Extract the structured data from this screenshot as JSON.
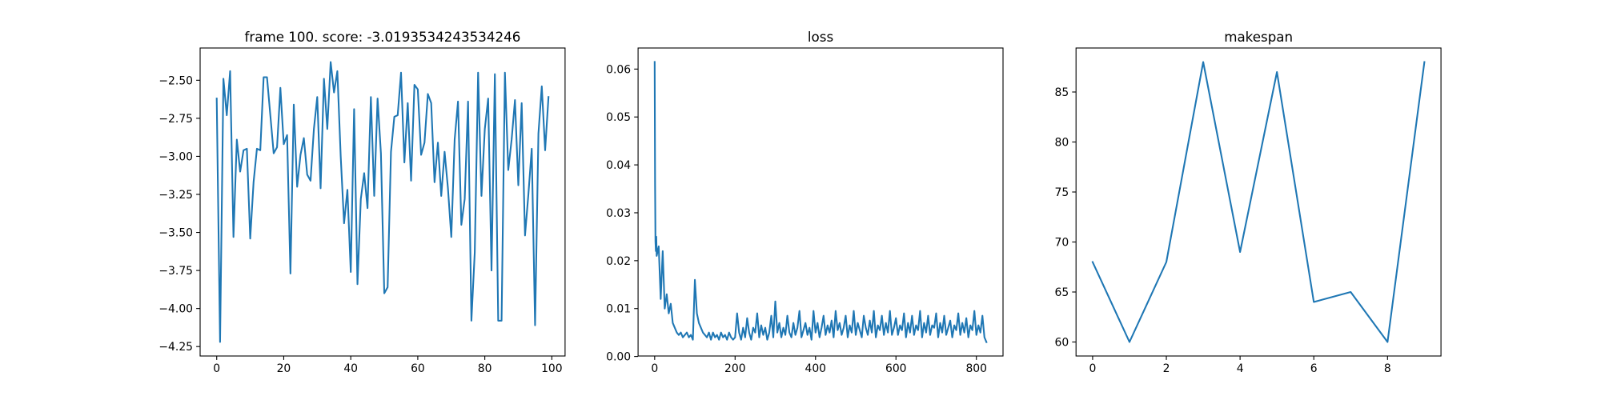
{
  "chart_data": [
    {
      "type": "line",
      "title": "frame 100. score: -3.0193534243534246",
      "color": "#1f77b4",
      "x": [
        0,
        1,
        2,
        3,
        4,
        5,
        6,
        7,
        8,
        9,
        10,
        11,
        12,
        13,
        14,
        15,
        16,
        17,
        18,
        19,
        20,
        21,
        22,
        23,
        24,
        25,
        26,
        27,
        28,
        29,
        30,
        31,
        32,
        33,
        34,
        35,
        36,
        37,
        38,
        39,
        40,
        41,
        42,
        43,
        44,
        45,
        46,
        47,
        48,
        49,
        50,
        51,
        52,
        53,
        54,
        55,
        56,
        57,
        58,
        59,
        60,
        61,
        62,
        63,
        64,
        65,
        66,
        67,
        68,
        69,
        70,
        71,
        72,
        73,
        74,
        75,
        76,
        77,
        78,
        79,
        80,
        81,
        82,
        83,
        84,
        85,
        86,
        87,
        88,
        89,
        90,
        91,
        92,
        93,
        94,
        95,
        96,
        97,
        98,
        99
      ],
      "values": [
        -2.62,
        -4.22,
        -2.49,
        -2.73,
        -2.44,
        -3.53,
        -2.89,
        -3.1,
        -2.96,
        -2.95,
        -3.54,
        -3.17,
        -2.95,
        -2.96,
        -2.48,
        -2.48,
        -2.73,
        -2.98,
        -2.94,
        -2.55,
        -2.92,
        -2.86,
        -3.77,
        -2.66,
        -3.2,
        -2.99,
        -2.88,
        -3.12,
        -3.16,
        -2.82,
        -2.61,
        -3.21,
        -2.49,
        -2.82,
        -2.38,
        -2.58,
        -2.44,
        -3.0,
        -3.44,
        -3.22,
        -3.76,
        -2.69,
        -3.84,
        -3.28,
        -3.11,
        -3.34,
        -2.61,
        -3.26,
        -2.62,
        -2.98,
        -3.9,
        -3.86,
        -2.97,
        -2.74,
        -2.73,
        -2.45,
        -3.04,
        -2.65,
        -3.16,
        -2.53,
        -2.56,
        -2.99,
        -2.91,
        -2.59,
        -2.65,
        -3.17,
        -2.91,
        -3.26,
        -2.97,
        -3.21,
        -3.53,
        -2.89,
        -2.64,
        -3.45,
        -3.28,
        -2.64,
        -4.08,
        -3.63,
        -2.45,
        -3.26,
        -2.82,
        -2.62,
        -3.75,
        -2.46,
        -4.08,
        -4.08,
        -2.45,
        -3.09,
        -2.89,
        -2.63,
        -3.19,
        -2.65,
        -3.52,
        -3.25,
        -2.95,
        -4.11,
        -2.85,
        -2.54,
        -2.96,
        -2.61
      ],
      "xlim": [
        -4.95,
        103.95
      ],
      "ylim": [
        -4.312,
        -2.288
      ],
      "xticks": [
        0,
        20,
        40,
        60,
        80,
        100
      ],
      "yticks": [
        {
          "value": -4.25,
          "label": "−4.25"
        },
        {
          "value": -4.0,
          "label": "−4.00"
        },
        {
          "value": -3.75,
          "label": "−3.75"
        },
        {
          "value": -3.5,
          "label": "−3.50"
        },
        {
          "value": -3.25,
          "label": "−3.25"
        },
        {
          "value": -3.0,
          "label": "−3.00"
        },
        {
          "value": -2.75,
          "label": "−2.75"
        },
        {
          "value": -2.5,
          "label": "−2.50"
        }
      ]
    },
    {
      "type": "line",
      "title": "loss",
      "color": "#1f77b4",
      "x": [
        0,
        1,
        2,
        3,
        4,
        5,
        10,
        15,
        20,
        25,
        30,
        35,
        40,
        45,
        50,
        55,
        60,
        65,
        70,
        75,
        80,
        85,
        90,
        95,
        100,
        105,
        110,
        115,
        120,
        125,
        130,
        135,
        140,
        145,
        150,
        155,
        160,
        165,
        170,
        175,
        180,
        185,
        190,
        195,
        200,
        205,
        210,
        215,
        220,
        225,
        230,
        235,
        240,
        245,
        250,
        255,
        260,
        265,
        270,
        275,
        280,
        285,
        290,
        295,
        300,
        305,
        310,
        315,
        320,
        325,
        330,
        335,
        340,
        345,
        350,
        355,
        360,
        365,
        370,
        375,
        380,
        385,
        390,
        395,
        400,
        405,
        410,
        415,
        420,
        425,
        430,
        435,
        440,
        445,
        450,
        455,
        460,
        465,
        470,
        475,
        480,
        485,
        490,
        495,
        500,
        505,
        510,
        515,
        520,
        525,
        530,
        535,
        540,
        545,
        550,
        555,
        560,
        565,
        570,
        575,
        580,
        585,
        590,
        595,
        600,
        605,
        610,
        615,
        620,
        625,
        630,
        635,
        640,
        645,
        650,
        655,
        660,
        665,
        670,
        675,
        680,
        685,
        690,
        695,
        700,
        705,
        710,
        715,
        720,
        725,
        730,
        735,
        740,
        745,
        750,
        755,
        760,
        765,
        770,
        775,
        780,
        785,
        790,
        795,
        800,
        805,
        810,
        815,
        820,
        825
      ],
      "values": [
        0.0615,
        0.036,
        0.024,
        0.022,
        0.025,
        0.021,
        0.023,
        0.012,
        0.022,
        0.01,
        0.013,
        0.009,
        0.011,
        0.007,
        0.006,
        0.005,
        0.0045,
        0.005,
        0.004,
        0.0045,
        0.005,
        0.004,
        0.0045,
        0.0035,
        0.016,
        0.009,
        0.007,
        0.006,
        0.005,
        0.0045,
        0.004,
        0.005,
        0.0035,
        0.005,
        0.004,
        0.0045,
        0.0035,
        0.005,
        0.004,
        0.0045,
        0.0035,
        0.005,
        0.004,
        0.0035,
        0.004,
        0.009,
        0.005,
        0.0035,
        0.006,
        0.004,
        0.008,
        0.005,
        0.0035,
        0.006,
        0.005,
        0.009,
        0.004,
        0.0065,
        0.0045,
        0.006,
        0.0035,
        0.005,
        0.0085,
        0.004,
        0.0115,
        0.005,
        0.007,
        0.004,
        0.006,
        0.0045,
        0.0085,
        0.005,
        0.004,
        0.007,
        0.0045,
        0.006,
        0.0095,
        0.004,
        0.0055,
        0.007,
        0.0045,
        0.006,
        0.0035,
        0.0095,
        0.005,
        0.007,
        0.004,
        0.006,
        0.0085,
        0.0045,
        0.0065,
        0.005,
        0.0075,
        0.004,
        0.0095,
        0.0055,
        0.007,
        0.0045,
        0.006,
        0.0085,
        0.004,
        0.0065,
        0.005,
        0.0095,
        0.0045,
        0.007,
        0.0055,
        0.004,
        0.0085,
        0.006,
        0.0045,
        0.0075,
        0.005,
        0.0095,
        0.004,
        0.0065,
        0.0055,
        0.0085,
        0.0045,
        0.007,
        0.005,
        0.0095,
        0.0045,
        0.006,
        0.008,
        0.0045,
        0.0065,
        0.0055,
        0.009,
        0.004,
        0.007,
        0.005,
        0.0085,
        0.0045,
        0.0065,
        0.0055,
        0.0095,
        0.004,
        0.007,
        0.005,
        0.0085,
        0.0045,
        0.0065,
        0.006,
        0.009,
        0.004,
        0.007,
        0.005,
        0.0085,
        0.0045,
        0.006,
        0.0075,
        0.004,
        0.0065,
        0.0055,
        0.009,
        0.0045,
        0.007,
        0.005,
        0.008,
        0.004,
        0.0065,
        0.0055,
        0.0095,
        0.0045,
        0.0065,
        0.005,
        0.0085,
        0.004,
        0.003
      ],
      "xlim": [
        -41.25,
        866.25
      ],
      "ylim": [
        0.0001,
        0.0644
      ],
      "xticks": [
        0,
        200,
        400,
        600,
        800
      ],
      "yticks": [
        {
          "value": 0,
          "label": "0.00"
        },
        {
          "value": 0.01,
          "label": "0.01"
        },
        {
          "value": 0.02,
          "label": "0.02"
        },
        {
          "value": 0.03,
          "label": "0.03"
        },
        {
          "value": 0.04,
          "label": "0.04"
        },
        {
          "value": 0.05,
          "label": "0.05"
        },
        {
          "value": 0.06,
          "label": "0.06"
        }
      ]
    },
    {
      "type": "line",
      "title": "makespan",
      "color": "#1f77b4",
      "x": [
        0,
        1,
        2,
        3,
        4,
        5,
        6,
        7,
        8,
        9
      ],
      "values": [
        68,
        60,
        68,
        88,
        69,
        87,
        64,
        65,
        60,
        88
      ],
      "xlim": [
        -0.45,
        9.45
      ],
      "ylim": [
        58.6,
        89.4
      ],
      "xticks": [
        0,
        2,
        4,
        6,
        8
      ],
      "yticks": [
        60,
        65,
        70,
        75,
        80,
        85
      ]
    }
  ]
}
